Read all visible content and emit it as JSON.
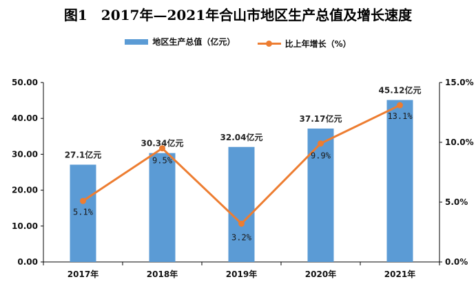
{
  "title": "图1　2017年—2021年合山市地区生产总值及增长速度",
  "legend": {
    "bar_label": "地区生产总值（亿元）",
    "line_label": "比上年增长（%）"
  },
  "colors": {
    "bar": "#5b9bd5",
    "line": "#ed7d31",
    "axis": "#000000"
  },
  "chart_data": {
    "type": "bar",
    "categories": [
      "2017年",
      "2018年",
      "2019年",
      "2020年",
      "2021年"
    ],
    "series": [
      {
        "name": "地区生产总值（亿元）",
        "type": "bar",
        "axis": "left",
        "values": [
          27.1,
          30.34,
          32.04,
          37.17,
          45.12
        ],
        "data_labels": [
          "27.1亿元",
          "30.34亿元",
          "32.04亿元",
          "37.17亿元",
          "45.12亿元"
        ]
      },
      {
        "name": "比上年增长（%）",
        "type": "line",
        "axis": "right",
        "values": [
          5.1,
          9.5,
          3.2,
          9.9,
          13.1
        ],
        "data_labels": [
          "5.1%",
          "9.5%",
          "3.2%",
          "9.9%",
          "13.1%"
        ]
      }
    ],
    "y_left": {
      "range": [
        0,
        50
      ],
      "ticks": [
        "0.00",
        "10.00",
        "20.00",
        "30.00",
        "40.00",
        "50.00"
      ]
    },
    "y_right": {
      "range": [
        0,
        15
      ],
      "ticks": [
        "0.0%",
        "5.0%",
        "10.0%",
        "15.0%"
      ]
    },
    "grid": false,
    "legend_position": "top"
  }
}
